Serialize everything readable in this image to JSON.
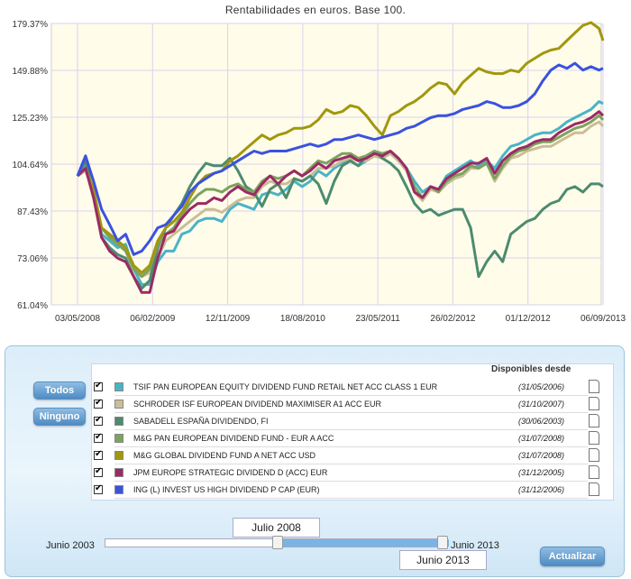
{
  "chart_data": {
    "type": "line",
    "title": "Rentabilidades en euros. Base 100.",
    "y_ticks": [
      "179.37%",
      "149.88%",
      "125.23%",
      "104.64%",
      "87.43%",
      "73.06%",
      "61.04%"
    ],
    "x_ticks": [
      "03/05/2008",
      "06/02/2009",
      "12/11/2009",
      "18/08/2010",
      "23/05/2011",
      "26/02/2012",
      "01/12/2012",
      "06/09/2013"
    ],
    "x_range": [
      "03/05/2008",
      "06/09/2013"
    ],
    "y_scale": "log",
    "grid": true,
    "series": [
      {
        "name": "TSIF PAN EUROPEAN EQUITY DIVIDEND FUND RETAIL NET ACC CLASS 1 EUR",
        "color": "#4ab3c6",
        "x": [
          0,
          4,
          8,
          12,
          16,
          20,
          24,
          28,
          32,
          36,
          40,
          44,
          48,
          52,
          56,
          60,
          64,
          68,
          72,
          76,
          80,
          84,
          88,
          92,
          96,
          100,
          104,
          108,
          112,
          116,
          120,
          124,
          128,
          132,
          136,
          140,
          144,
          148,
          152,
          156,
          160,
          164,
          168,
          172,
          176,
          180,
          184,
          188,
          192,
          196,
          200,
          204,
          208,
          212,
          216,
          220,
          224,
          228,
          232,
          236,
          240,
          244,
          248,
          252,
          256,
          260,
          262
        ],
        "y": [
          100,
          104,
          92,
          80,
          78,
          76,
          77,
          70,
          66,
          66,
          72,
          75,
          75,
          80,
          81,
          84,
          85,
          85,
          84,
          88,
          90,
          89,
          88,
          93,
          94,
          93,
          95,
          98,
          96,
          98,
          102,
          100,
          103,
          105,
          106,
          104,
          106,
          108,
          107,
          109,
          106,
          103,
          98,
          94,
          96,
          95,
          100,
          102,
          104,
          106,
          104,
          106,
          103,
          108,
          112,
          113,
          115,
          117,
          118,
          118,
          120,
          123,
          125,
          127,
          129,
          133,
          132
        ]
      },
      {
        "name": "SCHRODER ISF EUROPEAN DIVIDEND MAXIMISER A1 ACC EUR",
        "color": "#cbbd95",
        "x": [
          0,
          4,
          8,
          12,
          16,
          20,
          24,
          28,
          32,
          36,
          40,
          44,
          48,
          52,
          56,
          60,
          64,
          68,
          72,
          76,
          80,
          84,
          88,
          92,
          96,
          100,
          104,
          108,
          112,
          116,
          120,
          124,
          128,
          132,
          136,
          140,
          144,
          148,
          152,
          156,
          160,
          164,
          168,
          172,
          176,
          180,
          184,
          188,
          192,
          196,
          200,
          204,
          208,
          212,
          216,
          220,
          224,
          228,
          232,
          236,
          240,
          244,
          248,
          252,
          256,
          260,
          262
        ],
        "y": [
          100,
          102,
          94,
          82,
          79,
          78,
          76,
          70,
          68,
          69,
          73,
          78,
          80,
          82,
          84,
          86,
          88,
          88,
          87,
          89,
          91,
          92,
          92,
          96,
          98,
          97,
          97,
          99,
          98,
          100,
          103,
          103,
          104,
          106,
          107,
          106,
          106,
          108,
          107,
          109,
          106,
          102,
          94,
          91,
          95,
          94,
          97,
          99,
          100,
          103,
          103,
          105,
          98,
          103,
          107,
          108,
          110,
          111,
          112,
          112,
          114,
          116,
          118,
          118,
          121,
          123,
          121
        ]
      },
      {
        "name": "SABADELL ESPAÑA DIVIDENDO, FI",
        "color": "#4c8b6e",
        "x": [
          0,
          4,
          8,
          12,
          16,
          20,
          24,
          28,
          32,
          36,
          40,
          44,
          48,
          52,
          56,
          60,
          64,
          68,
          72,
          76,
          80,
          84,
          88,
          92,
          96,
          100,
          104,
          108,
          112,
          116,
          120,
          124,
          128,
          132,
          136,
          140,
          144,
          148,
          152,
          156,
          160,
          164,
          168,
          172,
          176,
          180,
          184,
          188,
          192,
          196,
          200,
          204,
          208,
          212,
          216,
          220,
          224,
          228,
          232,
          236,
          240,
          244,
          248,
          252,
          256,
          260,
          262
        ],
        "y": [
          100,
          106,
          93,
          79,
          76,
          74,
          73,
          68,
          65,
          67,
          76,
          82,
          86,
          90,
          96,
          101,
          105,
          104,
          104,
          107,
          102,
          96,
          94,
          89,
          95,
          97,
          92,
          99,
          98,
          100,
          97,
          90,
          98,
          104,
          106,
          104,
          108,
          110,
          107,
          105,
          102,
          96,
          90,
          87,
          88,
          86,
          87,
          88,
          88,
          82,
          68,
          72,
          75,
          72,
          80,
          82,
          84,
          85,
          88,
          90,
          91,
          95,
          96,
          94,
          97,
          97,
          96
        ]
      },
      {
        "name": "M&G PAN EUROPEAN DIVIDEND FUND - EUR A ACC",
        "color": "#7ca35e",
        "x": [
          0,
          4,
          8,
          12,
          16,
          20,
          24,
          28,
          32,
          36,
          40,
          44,
          48,
          52,
          56,
          60,
          64,
          68,
          72,
          76,
          80,
          84,
          88,
          92,
          96,
          100,
          104,
          108,
          112,
          116,
          120,
          124,
          128,
          132,
          136,
          140,
          144,
          148,
          152,
          156,
          160,
          164,
          168,
          172,
          176,
          180,
          184,
          188,
          192,
          196,
          200,
          204,
          208,
          212,
          216,
          220,
          224,
          228,
          232,
          236,
          240,
          244,
          248,
          252,
          256,
          260,
          262
        ],
        "y": [
          100,
          103,
          93,
          82,
          79,
          77,
          75,
          70,
          68,
          70,
          77,
          80,
          82,
          86,
          90,
          93,
          95,
          95,
          94,
          96,
          97,
          95,
          94,
          98,
          100,
          99,
          100,
          102,
          100,
          103,
          106,
          105,
          107,
          109,
          109,
          107,
          108,
          110,
          109,
          110,
          107,
          103,
          96,
          92,
          96,
          94,
          98,
          100,
          101,
          104,
          103,
          105,
          99,
          104,
          108,
          110,
          111,
          113,
          114,
          114,
          116,
          118,
          120,
          121,
          123,
          126,
          124
        ]
      },
      {
        "name": "M&G GLOBAL DIVIDEND FUND A NET ACC USD",
        "color": "#a1970e",
        "x": [
          0,
          4,
          8,
          12,
          16,
          20,
          24,
          28,
          32,
          36,
          40,
          44,
          48,
          52,
          56,
          60,
          64,
          68,
          72,
          76,
          80,
          84,
          88,
          92,
          96,
          100,
          104,
          108,
          112,
          116,
          120,
          124,
          128,
          132,
          136,
          140,
          144,
          148,
          152,
          156,
          160,
          164,
          168,
          172,
          176,
          180,
          184,
          188,
          192,
          196,
          200,
          204,
          208,
          212,
          216,
          220,
          224,
          228,
          232,
          236,
          240,
          244,
          248,
          252,
          256,
          260,
          262
        ],
        "y": [
          100,
          103,
          95,
          82,
          80,
          78,
          76,
          71,
          69,
          71,
          78,
          82,
          84,
          87,
          92,
          97,
          100,
          101,
          102,
          106,
          108,
          111,
          114,
          117,
          115,
          117,
          118,
          120,
          120,
          121,
          124,
          129,
          127,
          128,
          131,
          130,
          126,
          121,
          117,
          126,
          128,
          131,
          133,
          136,
          140,
          143,
          142,
          137,
          143,
          147,
          151,
          149,
          148,
          148,
          150,
          149,
          154,
          157,
          160,
          162,
          163,
          168,
          173,
          178,
          180,
          176,
          168
        ]
      },
      {
        "name": "JPM EUROPE STRATEGIC DIVIDEND D (ACC) EUR",
        "color": "#9b2a66",
        "x": [
          0,
          4,
          8,
          12,
          16,
          20,
          24,
          28,
          32,
          36,
          40,
          44,
          48,
          52,
          56,
          60,
          64,
          68,
          72,
          76,
          80,
          84,
          88,
          92,
          96,
          100,
          104,
          108,
          112,
          116,
          120,
          124,
          128,
          132,
          136,
          140,
          144,
          148,
          152,
          156,
          160,
          164,
          168,
          172,
          176,
          180,
          184,
          188,
          192,
          196,
          200,
          204,
          208,
          212,
          216,
          220,
          224,
          228,
          232,
          236,
          240,
          244,
          248,
          252,
          256,
          260,
          262
        ],
        "y": [
          100,
          103,
          92,
          79,
          75,
          73,
          72,
          68,
          64,
          64,
          73,
          80,
          81,
          85,
          88,
          90,
          90,
          92,
          91,
          94,
          96,
          94,
          93,
          97,
          100,
          97,
          100,
          102,
          100,
          102,
          105,
          103,
          106,
          107,
          108,
          106,
          107,
          109,
          108,
          110,
          107,
          103,
          94,
          92,
          96,
          95,
          99,
          101,
          103,
          105,
          105,
          107,
          101,
          106,
          109,
          111,
          112,
          114,
          115,
          115,
          118,
          120,
          122,
          123,
          125,
          128,
          126
        ]
      },
      {
        "name": "ING (L) INVEST US HIGH DIVIDEND P CAP (EUR)",
        "color": "#3b52dd",
        "x": [
          0,
          4,
          8,
          12,
          16,
          20,
          24,
          28,
          32,
          36,
          40,
          44,
          48,
          52,
          56,
          60,
          64,
          68,
          72,
          76,
          80,
          84,
          88,
          92,
          96,
          100,
          104,
          108,
          112,
          116,
          120,
          124,
          128,
          132,
          136,
          140,
          144,
          148,
          152,
          156,
          160,
          164,
          168,
          172,
          176,
          180,
          184,
          188,
          192,
          196,
          200,
          204,
          208,
          212,
          216,
          220,
          224,
          228,
          232,
          236,
          240,
          244,
          248,
          252,
          256,
          260,
          262
        ],
        "y": [
          100,
          108,
          98,
          88,
          83,
          78,
          80,
          74,
          75,
          78,
          82,
          83,
          86,
          89,
          94,
          97,
          99,
          101,
          102,
          104,
          106,
          108,
          110,
          109,
          110,
          110,
          110,
          111,
          112,
          113,
          112,
          113,
          115,
          115,
          116,
          117,
          116,
          115,
          116,
          117,
          118,
          120,
          121,
          123,
          125,
          126,
          126,
          127,
          129,
          130,
          131,
          133,
          132,
          130,
          130,
          131,
          133,
          137,
          144,
          150,
          153,
          151,
          154,
          150,
          152,
          150,
          151
        ]
      }
    ]
  },
  "panel": {
    "todos_label": "Todos",
    "ninguno_label": "Ninguno",
    "avail_header": "Disponibles desde",
    "funds": [
      {
        "name": "TSIF PAN EUROPEAN EQUITY DIVIDEND FUND RETAIL NET ACC CLASS 1 EUR",
        "date": "(31/05/2006)",
        "color": "#4ab3c6",
        "checked": true
      },
      {
        "name": "SCHRODER ISF EUROPEAN DIVIDEND MAXIMISER A1 ACC EUR",
        "date": "(31/10/2007)",
        "color": "#cbbd95",
        "checked": true
      },
      {
        "name": "SABADELL ESPAÑA DIVIDENDO, FI",
        "date": "(30/06/2003)",
        "color": "#4c8b6e",
        "checked": true
      },
      {
        "name": "M&G PAN EUROPEAN DIVIDEND FUND - EUR A ACC",
        "date": "(31/07/2008)",
        "color": "#7ca35e",
        "checked": true
      },
      {
        "name": "M&G GLOBAL DIVIDEND FUND A NET ACC USD",
        "date": "(31/07/2008)",
        "color": "#a1970e",
        "checked": true
      },
      {
        "name": "JPM EUROPE STRATEGIC DIVIDEND D (ACC) EUR",
        "date": "(31/12/2005)",
        "color": "#9b2a66",
        "checked": true
      },
      {
        "name": "ING (L) INVEST US HIGH DIVIDEND P CAP (EUR)",
        "date": "(31/12/2006)",
        "color": "#3b52dd",
        "checked": true
      }
    ],
    "slider": {
      "min_label": "Junio 2003",
      "max_label": "Junio 2013",
      "start_value": "Julio 2008",
      "end_value": "Junio 2013"
    },
    "update_label": "Actualizar"
  }
}
